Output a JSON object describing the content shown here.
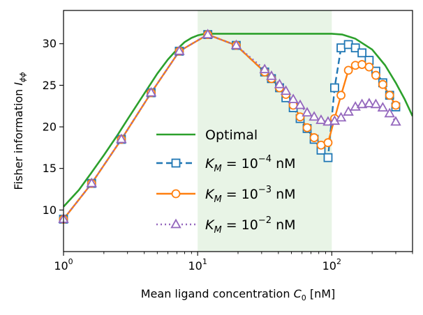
{
  "chart_data": {
    "type": "line",
    "x_scale": "log",
    "xlim": [
      1,
      400
    ],
    "ylim": [
      5,
      34
    ],
    "xlabel_main": "Mean ligand concentration ",
    "xlabel_symbol": "C",
    "xlabel_sub": "0",
    "xlabel_unit": " [nM]",
    "ylabel_main": "Fisher information ",
    "ylabel_symbol": "I",
    "ylabel_sub": "ϕϕ",
    "x_ticks": [
      {
        "value": 1,
        "base": "10",
        "exp": "0"
      },
      {
        "value": 10,
        "base": "10",
        "exp": "1"
      },
      {
        "value": 100,
        "base": "10",
        "exp": "2"
      }
    ],
    "y_ticks": [
      {
        "value": 10,
        "label": "10"
      },
      {
        "value": 15,
        "label": "15"
      },
      {
        "value": 20,
        "label": "20"
      },
      {
        "value": 25,
        "label": "25"
      },
      {
        "value": 30,
        "label": "30"
      }
    ],
    "shaded_region": {
      "x0": 10,
      "x1": 100,
      "color": "#e8f4e6"
    },
    "series": [
      {
        "name": "Optimal",
        "color": "#2ca02c",
        "style": "solid",
        "marker": "none",
        "x": [
          1,
          1.3,
          1.6,
          2,
          2.5,
          3,
          4,
          5,
          6,
          7,
          8,
          9,
          10,
          11,
          12,
          15,
          20,
          30,
          50,
          70,
          90,
          100,
          120,
          150,
          200,
          250,
          300,
          350,
          400
        ],
        "y": [
          10.4,
          12.4,
          14.4,
          16.6,
          18.9,
          20.9,
          24.0,
          26.4,
          28.1,
          29.3,
          30.2,
          30.7,
          31.0,
          31.15,
          31.2,
          31.2,
          31.2,
          31.2,
          31.2,
          31.2,
          31.2,
          31.2,
          31.1,
          30.6,
          29.3,
          27.4,
          25.3,
          23.3,
          21.3
        ]
      },
      {
        "name": "K_M = 10^-4 nM",
        "legend_base": "10",
        "legend_exp": "−4",
        "legend_unit": "nM",
        "color": "#1f77b4",
        "style": "dashed",
        "marker": "square",
        "x": [
          1,
          1.62,
          2.7,
          4.5,
          7.3,
          11.9,
          19.4,
          31.6,
          35.5,
          40.8,
          45.5,
          51.6,
          58.1,
          65.5,
          73.9,
          83.2,
          93.8,
          105,
          117.2,
          133,
          150,
          168,
          190,
          213,
          240,
          270,
          300
        ],
        "y": [
          8.9,
          13.2,
          18.5,
          24.1,
          29.1,
          31.1,
          29.8,
          26.6,
          25.8,
          24.7,
          23.5,
          22.3,
          21.0,
          19.8,
          18.5,
          17.2,
          16.3,
          24.7,
          29.5,
          29.9,
          29.5,
          28.9,
          28.0,
          26.7,
          25.3,
          23.8,
          22.4
        ]
      },
      {
        "name": "K_M = 10^-3 nM",
        "legend_base": "10",
        "legend_exp": "−3",
        "legend_unit": "nM",
        "color": "#ff7f0e",
        "style": "solid",
        "marker": "circle",
        "x": [
          1,
          1.62,
          2.7,
          4.5,
          7.3,
          11.9,
          19.4,
          31.6,
          35.5,
          40.8,
          45.5,
          51.6,
          58.1,
          65.5,
          73.9,
          83.2,
          93.8,
          105,
          117.2,
          133,
          150,
          168,
          190,
          213,
          240,
          270,
          300
        ],
        "y": [
          8.9,
          13.2,
          18.5,
          24.1,
          29.1,
          31.1,
          29.8,
          26.6,
          25.8,
          24.7,
          23.9,
          22.6,
          21.2,
          19.9,
          18.7,
          17.8,
          18.1,
          21.0,
          23.8,
          26.8,
          27.4,
          27.5,
          27.2,
          26.2,
          25.1,
          23.8,
          22.6
        ]
      },
      {
        "name": "K_M = 10^-2 nM",
        "legend_base": "10",
        "legend_exp": "−2",
        "legend_unit": "nM",
        "color": "#9467bd",
        "style": "dotted",
        "marker": "triangle",
        "x": [
          1,
          1.62,
          2.7,
          4.5,
          7.3,
          11.9,
          19.4,
          31.6,
          35.5,
          40.8,
          45.5,
          51.6,
          58.1,
          65.5,
          73.9,
          83.2,
          93.8,
          105,
          117.2,
          133,
          150,
          168,
          190,
          213,
          240,
          270,
          300
        ],
        "y": [
          8.9,
          13.2,
          18.5,
          24.1,
          29.1,
          31.1,
          29.8,
          26.9,
          26.1,
          25.1,
          24.3,
          23.3,
          22.6,
          21.7,
          21.2,
          20.8,
          20.6,
          20.7,
          21.1,
          21.8,
          22.4,
          22.7,
          22.8,
          22.7,
          22.3,
          21.6,
          20.6
        ]
      }
    ],
    "legend_label": "K",
    "legend_sub": "M",
    "legend_placement": "center-bottom"
  }
}
